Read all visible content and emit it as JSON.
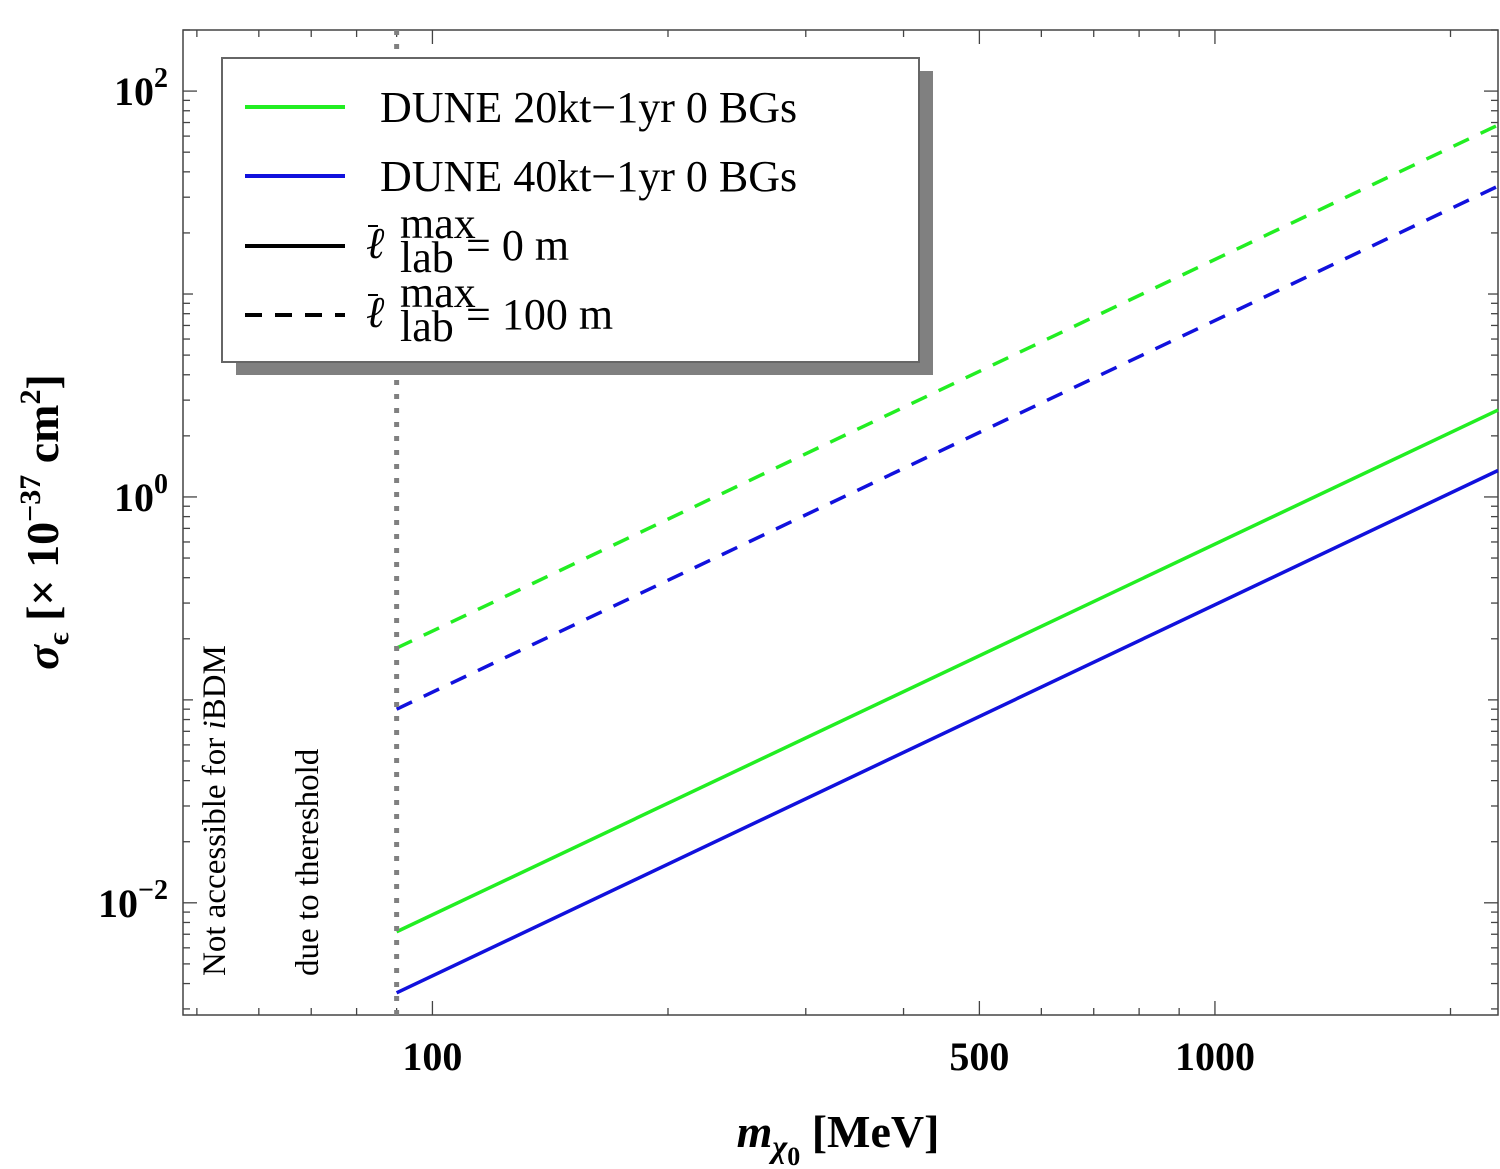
{
  "chart_data": {
    "type": "line",
    "xscale": "log",
    "yscale": "log",
    "xlim": [
      48,
      2300
    ],
    "ylim": [
      0.0028,
      200
    ],
    "x_ticks": [
      100,
      500,
      1000
    ],
    "x_tick_labels": [
      "100",
      "500",
      "1000"
    ],
    "y_ticks": [
      0.01,
      1,
      100
    ],
    "y_tick_labels": [
      {
        "base": "10",
        "exp": "−2"
      },
      {
        "base": "10",
        "exp": "0"
      },
      {
        "base": "10",
        "exp": "2"
      }
    ],
    "xlabel": {
      "main": "m",
      "sub": "χ",
      "subsub": "0",
      "unit": " [MeV]"
    },
    "ylabel": {
      "main": "σ",
      "sub": "ϵ",
      "pre": " [× 10",
      "exp": "−37",
      "mid": " cm",
      "exp2": "2",
      "post": "]"
    },
    "threshold_x": 90,
    "annotation": {
      "line1_pre": "Not accessible for ",
      "line1_italic": "i",
      "line1_post": "BDM",
      "line2": "due to thereshold"
    },
    "legend": {
      "position": "top-left",
      "entries": [
        {
          "label": "DUNE 20kt−1yr 0 BGs",
          "color": "#22ee22",
          "dash": "solid"
        },
        {
          "label": "DUNE 40kt−1yr 0 BGs",
          "color": "#1111dd",
          "dash": "solid"
        },
        {
          "symbol": "ℓ",
          "sup": "max",
          "sub": "lab",
          "rest": " = 0 m",
          "color": "#000000",
          "dash": "solid"
        },
        {
          "symbol": "ℓ",
          "sup": "max",
          "sub": "lab",
          "rest": " = 100 m",
          "color": "#000000",
          "dash": "dashed"
        }
      ]
    },
    "series": [
      {
        "name": "DUNE 20kt−1yr 0 BGs",
        "lab": "0 m",
        "color": "#22ee22",
        "dash": "solid",
        "x": [
          90,
          2300
        ],
        "y": [
          0.0072,
          2.68
        ]
      },
      {
        "name": "DUNE 40kt−1yr 0 BGs",
        "lab": "0 m",
        "color": "#1111dd",
        "dash": "solid",
        "x": [
          90,
          2300
        ],
        "y": [
          0.0036,
          1.35
        ]
      },
      {
        "name": "DUNE 20kt−1yr 0 BGs",
        "lab": "100 m",
        "color": "#22ee22",
        "dash": "dashed",
        "x": [
          90,
          2300
        ],
        "y": [
          0.18,
          68
        ]
      },
      {
        "name": "DUNE 40kt−1yr 0 BGs",
        "lab": "100 m",
        "color": "#1111dd",
        "dash": "dashed",
        "x": [
          90,
          2300
        ],
        "y": [
          0.09,
          34
        ]
      }
    ]
  }
}
